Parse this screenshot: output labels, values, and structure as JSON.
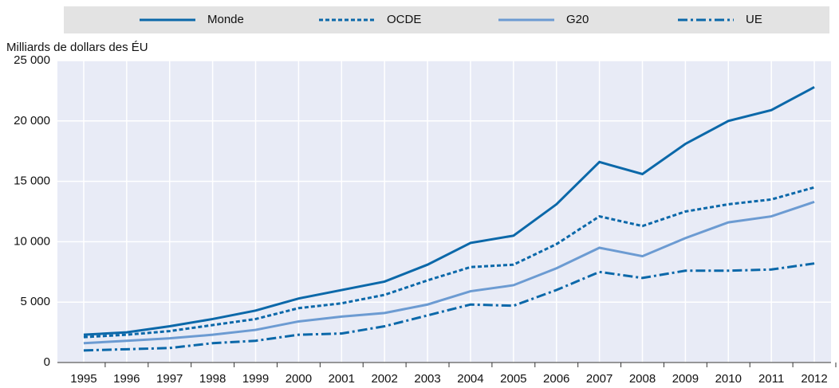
{
  "chart_data": {
    "type": "line",
    "y_label": "Milliards de dollars des ÉU",
    "categories": [
      "1995",
      "1996",
      "1997",
      "1998",
      "1999",
      "2000",
      "2001",
      "2002",
      "2003",
      "2004",
      "2005",
      "2006",
      "2007",
      "2008",
      "2009",
      "2010",
      "2011",
      "2012"
    ],
    "series": [
      {
        "name": "Monde",
        "color": "#0b68a9",
        "style": "solid",
        "values": [
          2300,
          2500,
          3000,
          3600,
          4300,
          5300,
          6000,
          6700,
          8100,
          9900,
          10500,
          13100,
          16600,
          15600,
          18100,
          20000,
          20900,
          22800
        ]
      },
      {
        "name": "OCDE",
        "color": "#0b68a9",
        "style": "dotted",
        "values": [
          2100,
          2300,
          2600,
          3100,
          3600,
          4500,
          4900,
          5600,
          6800,
          7900,
          8100,
          9800,
          12100,
          11300,
          12500,
          13100,
          13500,
          14500
        ]
      },
      {
        "name": "G20",
        "color": "#6c9bd2",
        "style": "solid",
        "values": [
          1600,
          1800,
          2000,
          2300,
          2700,
          3400,
          3800,
          4100,
          4800,
          5900,
          6400,
          7800,
          9500,
          8800,
          10300,
          11600,
          12100,
          13300
        ]
      },
      {
        "name": "UE",
        "color": "#0b68a9",
        "style": "dashdot",
        "values": [
          1000,
          1100,
          1200,
          1600,
          1800,
          2300,
          2400,
          3000,
          3900,
          4800,
          4700,
          6000,
          7500,
          7000,
          7600,
          7600,
          7700,
          8200
        ]
      }
    ],
    "ylim": [
      0,
      25000
    ],
    "yticks": [
      0,
      {
        "value": 5000,
        "label": "5 000"
      },
      {
        "value": 10000,
        "label": "10 000"
      },
      {
        "value": 15000,
        "label": "15 000"
      },
      {
        "value": 20000,
        "label": "20 000"
      },
      {
        "value": 25000,
        "label": "25 000"
      }
    ],
    "grid": true,
    "legend": "top"
  }
}
